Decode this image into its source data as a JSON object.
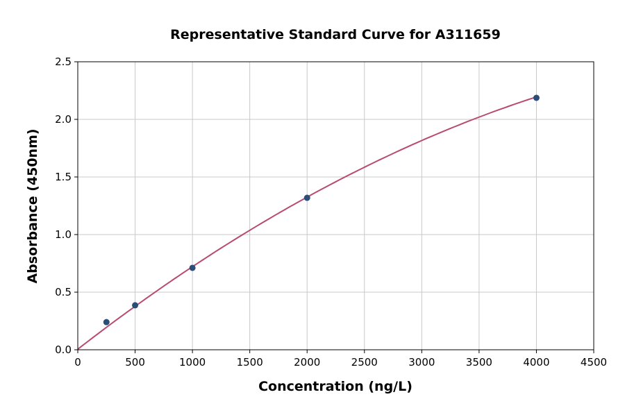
{
  "chart_data": {
    "type": "scatter",
    "title": "Representative Standard Curve for A311659",
    "xlabel": "Concentration (ng/L)",
    "ylabel": "Absorbance (450nm)",
    "xlim": [
      0,
      4500
    ],
    "ylim": [
      0,
      2.5
    ],
    "xticks": [
      0,
      500,
      1000,
      1500,
      2000,
      2500,
      3000,
      3500,
      4000,
      4500
    ],
    "yticks": [
      "0.0",
      "0.5",
      "1.0",
      "1.5",
      "2.0",
      "2.5"
    ],
    "grid": true,
    "points": [
      {
        "x": 250,
        "y": 0.24
      },
      {
        "x": 500,
        "y": 0.386
      },
      {
        "x": 1000,
        "y": 0.711
      },
      {
        "x": 2000,
        "y": 1.319
      },
      {
        "x": 4000,
        "y": 2.187
      }
    ],
    "fit_curve": {
      "type": "quadratic",
      "coefficients": [
        0.005,
        0.0007725,
        -5.625e-08
      ],
      "x_range": [
        0,
        4000
      ]
    },
    "colors": {
      "points": "#2a4e78",
      "curve": "#b84a72",
      "grid": "#c8c8c8"
    }
  }
}
